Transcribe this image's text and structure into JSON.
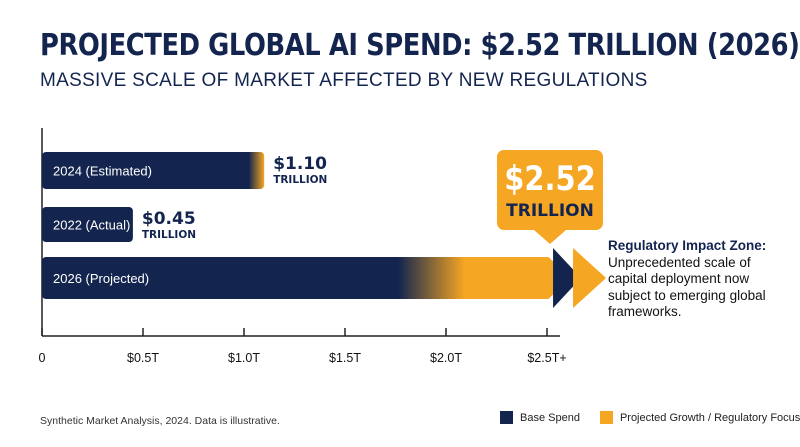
{
  "title": "PROJECTED GLOBAL AI SPEND: $2.52 TRILLION (2026)",
  "subtitle": "MASSIVE SCALE OF MARKET AFFECTED BY NEW REGULATIONS",
  "colors": {
    "base": "#13254f",
    "growth": "#f5a623"
  },
  "chart_data": {
    "type": "bar",
    "orientation": "horizontal",
    "unit": "T",
    "xlim": [
      0,
      2.5
    ],
    "ticks": [
      {
        "value": 0,
        "label": "0"
      },
      {
        "value": 0.5,
        "label": "$0.5T"
      },
      {
        "value": 1.0,
        "label": "$1.0T"
      },
      {
        "value": 1.5,
        "label": "$1.5T"
      },
      {
        "value": 2.0,
        "label": "$2.0T"
      },
      {
        "value": 2.5,
        "label": "$2.5T+"
      }
    ],
    "bars": [
      {
        "category": "2024 (Estimated)",
        "value": 1.1,
        "value_label": "$1.10",
        "unit_label": "TRILLION",
        "growth_start": 1.05
      },
      {
        "category": "2022 (Actual)",
        "value": 0.45,
        "value_label": "$0.45",
        "unit_label": "TRILLION",
        "growth_start": null
      },
      {
        "category": "2026 (Projected)",
        "value": 2.52,
        "value_label": "$2.52",
        "unit_label": "TRILLION",
        "growth_start": 1.75
      }
    ],
    "legend": [
      {
        "name": "Base Spend",
        "color": "#13254f"
      },
      {
        "name": "Projected Growth / Regulatory Focus",
        "color": "#f5a623"
      }
    ]
  },
  "callout": {
    "heading": "Regulatory Impact Zone:",
    "body": "Unprecedented scale of capital deployment now subject to emerging global frameworks."
  },
  "source": "Synthetic Market Analysis, 2024. Data is illustrative."
}
